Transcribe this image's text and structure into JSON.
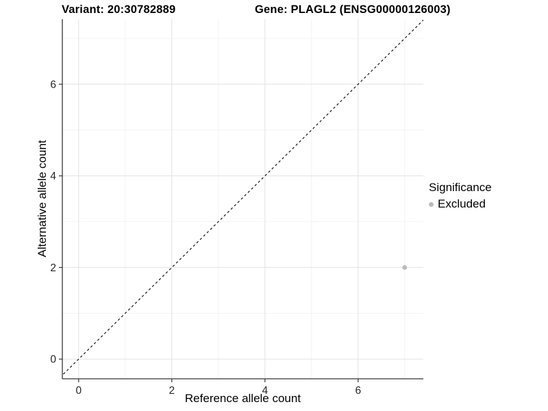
{
  "header": {
    "variant_title": "Variant: 20:30782889",
    "gene_title": "Gene: PLAGL2 (ENSG00000126003)"
  },
  "chart_data": {
    "type": "scatter",
    "title": "Variant: 20:30782889  Gene: PLAGL2 (ENSG00000126003)",
    "xlabel": "Reference allele count",
    "ylabel": "Alternative allele count",
    "x_ticks": [
      0,
      2,
      4,
      6
    ],
    "y_ticks": [
      0,
      2,
      4,
      6
    ],
    "x_minor_ticks": [
      1,
      3,
      5,
      7
    ],
    "y_minor_ticks": [
      1,
      3,
      5,
      7
    ],
    "xlim": [
      -0.35,
      7.4
    ],
    "ylim": [
      -0.43,
      7.42
    ],
    "grid": true,
    "identity_line": {
      "type": "dashed",
      "color": "#000000",
      "description": "y = x"
    },
    "points": [
      {
        "x": 7,
        "y": 2,
        "series": "Excluded"
      }
    ],
    "legend": {
      "title": "Significance",
      "position": "right",
      "items": [
        {
          "label": "Excluded",
          "color": "#BBBBBB"
        }
      ]
    },
    "colors": {
      "background": "#FFFFFF",
      "axis": "#333333",
      "tick_text": "#262626",
      "grid_major": "#E4E4E4",
      "grid_minor": "#F2F2F2",
      "point": "#BBBBBB"
    }
  }
}
